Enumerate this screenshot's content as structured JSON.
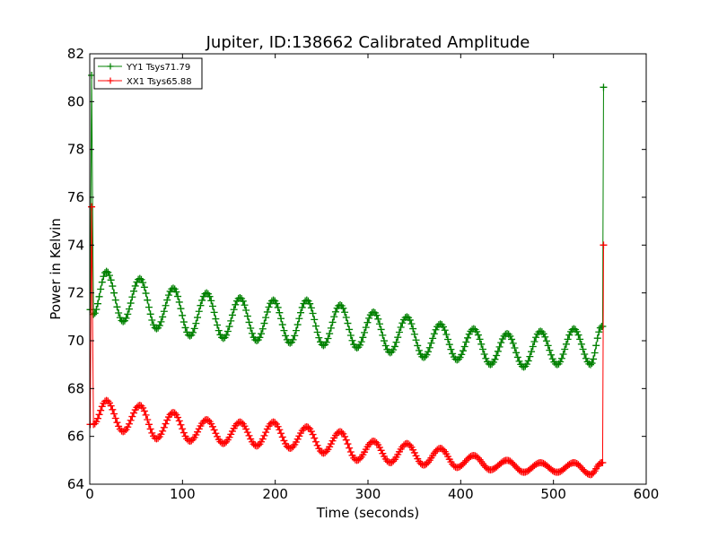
{
  "chart_data": {
    "type": "line",
    "title": "Jupiter, ID:138662 Calibrated Amplitude",
    "xlabel": "Time (seconds)",
    "ylabel": "Power in Kelvin",
    "xlim": [
      0,
      600
    ],
    "ylim": [
      64,
      82
    ],
    "xticks": [
      0,
      100,
      200,
      300,
      400,
      500,
      600
    ],
    "yticks": [
      64,
      66,
      68,
      70,
      72,
      74,
      76,
      78,
      80,
      82
    ],
    "grid": false,
    "legend_position": "top-left",
    "series": [
      {
        "name": "YY1 Tsys71.79",
        "color": "#008000",
        "marker": "plus",
        "x": [
          0.5,
          2,
          4,
          18,
          36,
          54,
          72,
          90,
          108,
          126,
          144,
          162,
          180,
          198,
          216,
          234,
          252,
          270,
          288,
          306,
          324,
          342,
          360,
          378,
          396,
          414,
          432,
          450,
          468,
          486,
          504,
          522,
          540,
          552,
          553,
          554
        ],
        "y": [
          71.3,
          81.1,
          71.1,
          72.9,
          70.8,
          72.6,
          70.5,
          72.2,
          70.2,
          72.0,
          70.1,
          71.8,
          70.0,
          71.7,
          69.9,
          71.7,
          69.8,
          71.5,
          69.7,
          71.2,
          69.5,
          71.0,
          69.3,
          70.7,
          69.2,
          70.5,
          69.0,
          70.3,
          68.9,
          70.4,
          69.0,
          70.5,
          69.0,
          70.6,
          70.6,
          80.6
        ]
      },
      {
        "name": "XX1 Tsys65.88",
        "color": "#ff0000",
        "marker": "plus",
        "x": [
          0.5,
          2,
          4,
          18,
          36,
          54,
          72,
          90,
          108,
          126,
          144,
          162,
          180,
          198,
          216,
          234,
          252,
          270,
          288,
          306,
          324,
          342,
          360,
          378,
          396,
          414,
          432,
          450,
          468,
          486,
          504,
          522,
          540,
          552,
          553,
          554
        ],
        "y": [
          66.5,
          75.6,
          66.5,
          67.5,
          66.2,
          67.3,
          65.9,
          67.0,
          65.8,
          66.7,
          65.7,
          66.6,
          65.6,
          66.6,
          65.5,
          66.4,
          65.3,
          66.2,
          65.0,
          65.8,
          64.9,
          65.7,
          64.8,
          65.5,
          64.7,
          65.2,
          64.6,
          65.0,
          64.5,
          64.9,
          64.5,
          64.9,
          64.4,
          64.9,
          64.9,
          74.0
        ]
      }
    ]
  }
}
